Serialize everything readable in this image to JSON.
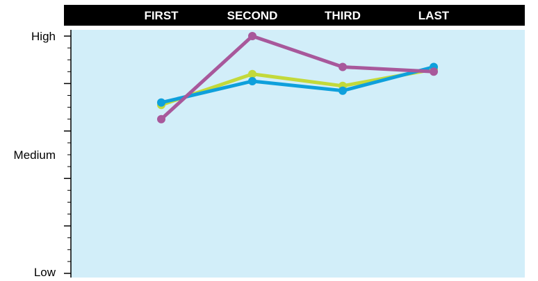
{
  "chart_data": {
    "type": "line",
    "title": "",
    "xlabel": "",
    "ylabel": "",
    "categories": [
      "FIRST",
      "SECOND",
      "THIRD",
      "LAST"
    ],
    "y_scale": {
      "min_label": "Low",
      "mid_label": "Medium",
      "max_label": "High",
      "ylim": [
        0,
        1
      ],
      "labels": [
        {
          "text": "High",
          "value": 1.0
        },
        {
          "text": "Medium",
          "value": 0.5
        },
        {
          "text": "Low",
          "value": 0.0
        }
      ]
    },
    "series": [
      {
        "color": "#c3d93a",
        "values": [
          0.71,
          0.84,
          0.79,
          0.86
        ]
      },
      {
        "color": "#0ea0dc",
        "values": [
          0.72,
          0.81,
          0.77,
          0.87
        ]
      },
      {
        "color": "#a8589b",
        "values": [
          0.65,
          1.0,
          0.87,
          0.85
        ]
      }
    ],
    "grid": false,
    "legend": "none",
    "colors": {
      "plot_background": "#d2eef9",
      "header_background": "#000000",
      "header_text": "#ffffff"
    }
  }
}
